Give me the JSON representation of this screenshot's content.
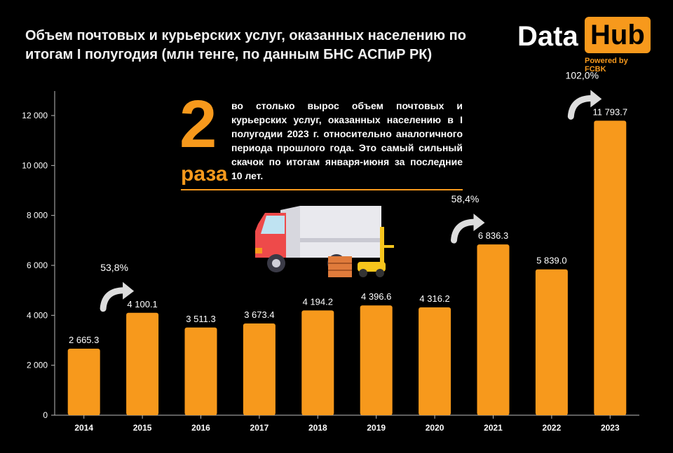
{
  "header": {
    "title": "Объем почтовых и курьерских услуг, оказанных населению по итогам I полугодия (млн тенге,  по данным БНС АСПиР РК)"
  },
  "logo": {
    "data": "Data",
    "hub": "Hub",
    "powered": "Powered by FCBK"
  },
  "callout": {
    "number": "2",
    "unit": "раза",
    "text": "во столько вырос объем почтовых и курьерских услуг, оказанных населению в I полугодии 2023 г. относительно аналогичного периода прошлого года. Это самый сильный скачок по итогам января-июня  за последние 10 лет."
  },
  "colors": {
    "bar": "#f7991c",
    "background": "#000000",
    "axis": "#bbbbbb"
  },
  "chart_data": {
    "type": "bar",
    "categories": [
      "2014",
      "2015",
      "2016",
      "2017",
      "2018",
      "2019",
      "2020",
      "2021",
      "2022",
      "2023"
    ],
    "values": [
      2665.3,
      4100.1,
      3511.3,
      3673.4,
      4194.2,
      4396.6,
      4316.2,
      6836.3,
      5839.0,
      11793.7
    ],
    "value_labels": [
      "2 665.3",
      "4 100.1",
      "3 511.3",
      "3 673.4",
      "4 194.2",
      "4 396.6",
      "4 316.2",
      "6 836.3",
      "5 839.0",
      "11 793.7"
    ],
    "yticks": [
      0,
      2000,
      4000,
      6000,
      8000,
      10000,
      12000
    ],
    "ytick_labels": [
      "0",
      "2 000",
      "4 000",
      "6 000",
      "8 000",
      "10 000",
      "12 000"
    ],
    "ylim": [
      0,
      12500
    ],
    "annotations": [
      {
        "category": "2015",
        "text": "53,8%"
      },
      {
        "category": "2021",
        "text": "58,4%"
      },
      {
        "category": "2023",
        "text": "102,0%"
      }
    ],
    "grid": false,
    "legend": "none"
  }
}
